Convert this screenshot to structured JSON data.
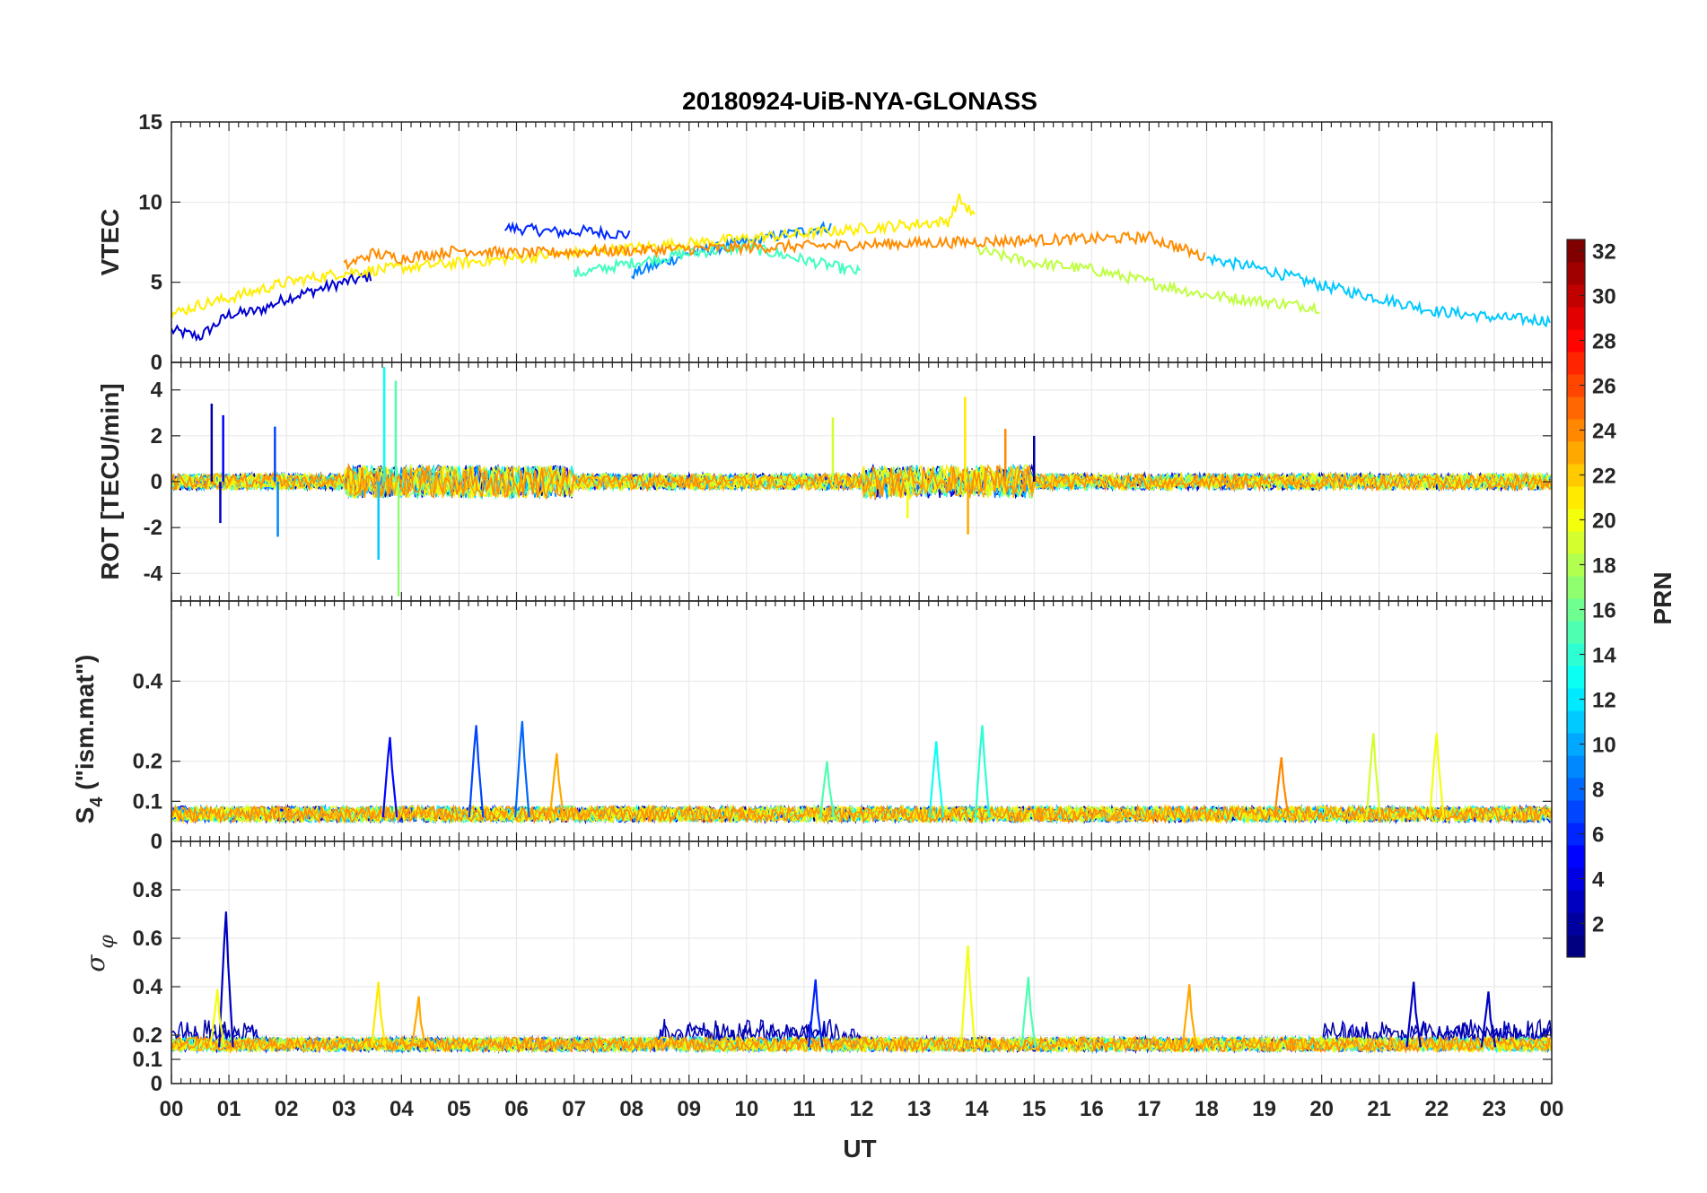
{
  "chart_data": {
    "type": "line",
    "title": "20180924-UiB-NYA-GLONASS",
    "xlabel": "UT",
    "x_ticks": [
      "00",
      "01",
      "02",
      "03",
      "04",
      "05",
      "06",
      "07",
      "08",
      "09",
      "10",
      "11",
      "12",
      "13",
      "14",
      "15",
      "16",
      "17",
      "18",
      "19",
      "20",
      "21",
      "22",
      "23",
      "00"
    ],
    "xlim": [
      0,
      24
    ],
    "colorbar": {
      "label": "PRN",
      "range": [
        1,
        32
      ],
      "ticks": [
        "2",
        "4",
        "6",
        "8",
        "10",
        "12",
        "14",
        "16",
        "18",
        "20",
        "22",
        "24",
        "26",
        "28",
        "30",
        "32"
      ],
      "colormap": "jet"
    },
    "panels": [
      {
        "id": "vtec",
        "ylabel": "VTEC",
        "ylim": [
          0,
          15
        ],
        "yticks": [
          0,
          5,
          10,
          15
        ],
        "ytick_labels": [
          "0",
          "5",
          "10",
          "15"
        ],
        "series": [
          {
            "prn": 3,
            "color": "#0000d0",
            "x": [
              0.0,
              0.5,
              1.0,
              1.5,
              2.0,
              2.5,
              3.0,
              3.5
            ],
            "y": [
              2.0,
              1.6,
              3.0,
              3.2,
              4.0,
              4.5,
              5.0,
              5.4
            ]
          },
          {
            "prn": 5,
            "color": "#0028ff",
            "x": [
              5.8,
              6.2,
              6.8,
              7.2,
              7.8,
              8.0
            ],
            "y": [
              8.4,
              8.3,
              8.1,
              8.2,
              8.0,
              7.9
            ]
          },
          {
            "prn": 9,
            "color": "#0080ff",
            "x": [
              8.0,
              9.0,
              10.0,
              11.0,
              11.5
            ],
            "y": [
              5.5,
              6.8,
              7.5,
              8.2,
              8.5
            ]
          },
          {
            "prn": 12,
            "color": "#00c8ff",
            "x": [
              18.0,
              19.0,
              20.0,
              21.0,
              22.0,
              23.0,
              24.0
            ],
            "y": [
              6.5,
              5.8,
              4.8,
              4.0,
              3.2,
              2.8,
              2.6
            ]
          },
          {
            "prn": 15,
            "color": "#40ffbf",
            "x": [
              7.0,
              8.0,
              9.0,
              10.0,
              11.0,
              12.0
            ],
            "y": [
              5.5,
              6.2,
              6.8,
              7.2,
              6.4,
              5.6
            ]
          },
          {
            "prn": 18,
            "color": "#bfff40",
            "x": [
              14.0,
              15.0,
              16.0,
              17.0,
              18.0,
              19.0,
              20.0
            ],
            "y": [
              7.0,
              6.2,
              5.8,
              5.0,
              4.2,
              3.8,
              3.4
            ]
          },
          {
            "prn": 20,
            "color": "#ffee00",
            "x": [
              0.0,
              0.5,
              1.0,
              2.0,
              3.0,
              13.5,
              13.7,
              14.0
            ],
            "y": [
              3.0,
              3.6,
              4.0,
              5.0,
              5.6,
              8.8,
              10.2,
              9.0
            ]
          },
          {
            "prn": 23,
            "color": "#ff8c00",
            "x": [
              3.0,
              3.5,
              4.0,
              5.0,
              6.0,
              17.0,
              17.5,
              18.0
            ],
            "y": [
              6.0,
              6.8,
              6.5,
              7.0,
              6.8,
              7.8,
              7.2,
              6.5
            ]
          }
        ]
      },
      {
        "id": "rot",
        "ylabel": "ROT [TECU/min]",
        "ylim": [
          -5.2,
          5.2
        ],
        "yticks": [
          -4,
          -2,
          0,
          2,
          4
        ],
        "ytick_labels": [
          "-4",
          "-2",
          "0",
          "2",
          "4"
        ],
        "spikes": [
          {
            "x": 0.7,
            "y": 3.4
          },
          {
            "x": 0.85,
            "y": -1.8
          },
          {
            "x": 0.9,
            "y": 2.9
          },
          {
            "x": 1.8,
            "y": 2.4
          },
          {
            "x": 1.85,
            "y": -2.4
          },
          {
            "x": 3.6,
            "y": -3.4
          },
          {
            "x": 3.7,
            "y": 5.0
          },
          {
            "x": 3.9,
            "y": 4.4
          },
          {
            "x": 3.95,
            "y": -5.0
          },
          {
            "x": 11.5,
            "y": 2.8
          },
          {
            "x": 12.8,
            "y": -1.6
          },
          {
            "x": 13.8,
            "y": 3.7
          },
          {
            "x": 13.85,
            "y": -2.3
          },
          {
            "x": 14.5,
            "y": 2.3
          },
          {
            "x": 15.0,
            "y": 2.0
          }
        ]
      },
      {
        "id": "s4",
        "ylabel": "S4 (\"ism.mat\")",
        "ylabel_main": "S",
        "ylabel_sub": "4",
        "ylabel_rest": " (\"ism.mat\")",
        "ylim": [
          0,
          0.6
        ],
        "yticks": [
          0,
          0.1,
          0.2,
          0.4
        ],
        "ytick_labels": [
          "0",
          "0.1",
          "0.2",
          "0.4"
        ],
        "peaks": [
          {
            "x": 3.8,
            "y": 0.26,
            "prn": 5
          },
          {
            "x": 5.3,
            "y": 0.29,
            "prn": 7
          },
          {
            "x": 6.1,
            "y": 0.3,
            "prn": 8
          },
          {
            "x": 6.7,
            "y": 0.22,
            "prn": 23
          },
          {
            "x": 11.4,
            "y": 0.2,
            "prn": 15
          },
          {
            "x": 13.3,
            "y": 0.25,
            "prn": 13
          },
          {
            "x": 14.1,
            "y": 0.29,
            "prn": 14
          },
          {
            "x": 19.3,
            "y": 0.21,
            "prn": 24
          },
          {
            "x": 20.9,
            "y": 0.27,
            "prn": 19
          },
          {
            "x": 22.0,
            "y": 0.27,
            "prn": 20
          }
        ]
      },
      {
        "id": "sigma_phi",
        "ylabel": "σ φ",
        "ylabel_main": "σ",
        "ylabel_sub": "φ",
        "ylim": [
          0,
          1.0
        ],
        "yticks": [
          0,
          0.1,
          0.2,
          0.4,
          0.6,
          0.8
        ],
        "ytick_labels": [
          "0",
          "0.1",
          "0.2",
          "0.4",
          "0.6",
          "0.8"
        ],
        "peaks": [
          {
            "x": 0.95,
            "y": 0.71,
            "prn": 3
          },
          {
            "x": 0.8,
            "y": 0.39,
            "prn": 20
          },
          {
            "x": 3.6,
            "y": 0.42,
            "prn": 21
          },
          {
            "x": 4.3,
            "y": 0.36,
            "prn": 23
          },
          {
            "x": 11.2,
            "y": 0.43,
            "prn": 6
          },
          {
            "x": 13.85,
            "y": 0.57,
            "prn": 20
          },
          {
            "x": 14.9,
            "y": 0.44,
            "prn": 15
          },
          {
            "x": 17.7,
            "y": 0.41,
            "prn": 23
          },
          {
            "x": 21.6,
            "y": 0.42,
            "prn": 3
          },
          {
            "x": 22.9,
            "y": 0.38,
            "prn": 3
          }
        ]
      }
    ]
  }
}
